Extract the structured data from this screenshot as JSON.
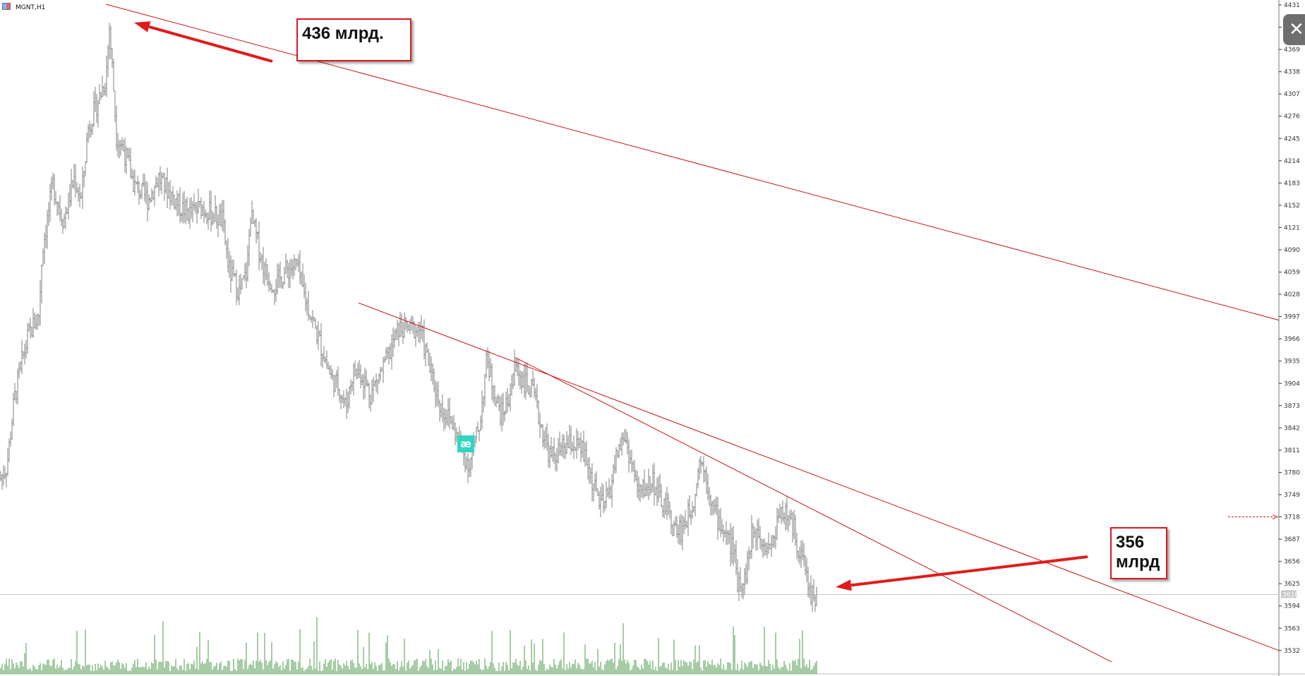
{
  "symbol": {
    "label": "MGNT,H1"
  },
  "callouts": [
    {
      "line1": "436 млрд.",
      "line2": ""
    },
    {
      "line1": "356",
      "line2": "млрд"
    }
  ],
  "close_button": {
    "glyph": "✕",
    "icon": "close-icon"
  },
  "alert_marker": {
    "glyph": "æ"
  },
  "current_price_label": "3610",
  "colors": {
    "price_bars": "#808080",
    "volume_bars": "#4e9a4e",
    "trendlines": "#c81414",
    "callout_border": "#d9181f",
    "arrows": "#e01b1b",
    "alert_marker": "#2fd6c2",
    "axis": "#333333"
  },
  "chart_data": {
    "type": "bar",
    "title": "MGNT,H1",
    "xlabel": "",
    "ylabel": "",
    "ylim": [
      3522,
      4432
    ],
    "y_ticks": [
      4431,
      4400,
      4369,
      4338,
      4307,
      4276,
      4245,
      4214,
      4183,
      4152,
      4121,
      4090,
      4059,
      4028,
      3997,
      3966,
      3935,
      3904,
      3873,
      3842,
      3811,
      3780,
      3749,
      3718,
      3687,
      3656,
      3625,
      3594,
      3563,
      3532
    ],
    "current_price": 3610,
    "price_series": {
      "name": "",
      "close_path": [
        [
          0,
          3770
        ],
        [
          10,
          3790
        ],
        [
          20,
          3880
        ],
        [
          30,
          3930
        ],
        [
          40,
          3970
        ],
        [
          55,
          4000
        ],
        [
          60,
          4090
        ],
        [
          75,
          4180
        ],
        [
          90,
          4130
        ],
        [
          105,
          4190
        ],
        [
          115,
          4160
        ],
        [
          125,
          4260
        ],
        [
          140,
          4300
        ],
        [
          150,
          4330
        ],
        [
          155,
          4400
        ],
        [
          160,
          4330
        ],
        [
          165,
          4250
        ],
        [
          175,
          4230
        ],
        [
          190,
          4180
        ],
        [
          210,
          4160
        ],
        [
          225,
          4190
        ],
        [
          240,
          4170
        ],
        [
          255,
          4150
        ],
        [
          270,
          4140
        ],
        [
          285,
          4150
        ],
        [
          300,
          4140
        ],
        [
          315,
          4130
        ],
        [
          325,
          4060
        ],
        [
          340,
          4030
        ],
        [
          350,
          4060
        ],
        [
          355,
          4140
        ],
        [
          365,
          4100
        ],
        [
          375,
          4060
        ],
        [
          390,
          4040
        ],
        [
          405,
          4060
        ],
        [
          420,
          4070
        ],
        [
          430,
          4030
        ],
        [
          440,
          4000
        ],
        [
          450,
          3970
        ],
        [
          470,
          3910
        ],
        [
          480,
          3900
        ],
        [
          490,
          3870
        ],
        [
          500,
          3920
        ],
        [
          510,
          3920
        ],
        [
          525,
          3890
        ],
        [
          535,
          3910
        ],
        [
          550,
          3940
        ],
        [
          565,
          3980
        ],
        [
          580,
          3980
        ],
        [
          595,
          3980
        ],
        [
          610,
          3920
        ],
        [
          625,
          3870
        ],
        [
          640,
          3850
        ],
        [
          655,
          3810
        ],
        [
          665,
          3790
        ],
        [
          680,
          3850
        ],
        [
          690,
          3940
        ],
        [
          700,
          3890
        ],
        [
          710,
          3860
        ],
        [
          720,
          3880
        ],
        [
          730,
          3930
        ],
        [
          740,
          3910
        ],
        [
          755,
          3890
        ],
        [
          765,
          3850
        ],
        [
          780,
          3800
        ],
        [
          795,
          3810
        ],
        [
          810,
          3820
        ],
        [
          825,
          3810
        ],
        [
          835,
          3780
        ],
        [
          845,
          3750
        ],
        [
          855,
          3730
        ],
        [
          865,
          3760
        ],
        [
          875,
          3810
        ],
        [
          885,
          3830
        ],
        [
          895,
          3790
        ],
        [
          905,
          3750
        ],
        [
          915,
          3760
        ],
        [
          925,
          3770
        ],
        [
          935,
          3740
        ],
        [
          945,
          3730
        ],
        [
          955,
          3700
        ],
        [
          965,
          3700
        ],
        [
          975,
          3720
        ],
        [
          985,
          3750
        ],
        [
          990,
          3800
        ],
        [
          1000,
          3780
        ],
        [
          1010,
          3730
        ],
        [
          1020,
          3710
        ],
        [
          1030,
          3690
        ],
        [
          1040,
          3670
        ],
        [
          1045,
          3630
        ],
        [
          1055,
          3630
        ],
        [
          1065,
          3690
        ],
        [
          1075,
          3700
        ],
        [
          1085,
          3680
        ],
        [
          1095,
          3680
        ],
        [
          1105,
          3730
        ],
        [
          1115,
          3720
        ],
        [
          1125,
          3700
        ],
        [
          1130,
          3680
        ],
        [
          1140,
          3650
        ],
        [
          1148,
          3612
        ],
        [
          1157,
          3606
        ]
      ]
    },
    "volume_series": {
      "name": "",
      "max_value": 1
    },
    "trendlines": [
      {
        "from": [
          150,
          4432
        ],
        "to": [
          1812,
          3992
        ]
      },
      {
        "from": [
          508,
          4016
        ],
        "to": [
          1812,
          3532
        ]
      },
      {
        "from": [
          730,
          3940
        ],
        "to": [
          1575,
          3516
        ]
      }
    ]
  }
}
